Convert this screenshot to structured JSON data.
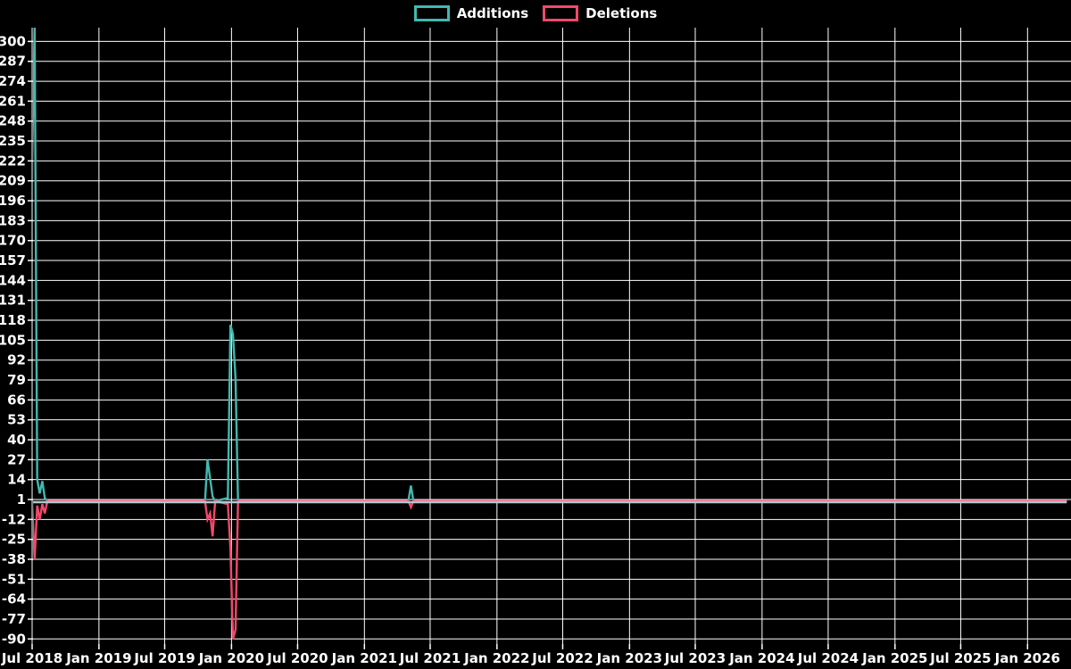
{
  "legend": {
    "additions_label": "Additions",
    "deletions_label": "Deletions"
  },
  "colors": {
    "background": "#000000",
    "grid": "#ffffff",
    "text": "#ffffff",
    "additions": "#42b8b0",
    "deletions": "#f1496b",
    "zero_baseline": "#b0c8d2"
  },
  "chart_data": {
    "type": "line",
    "title": "",
    "legend": [
      "Additions",
      "Deletions"
    ],
    "legend_position": "top-center",
    "grid": true,
    "background": "black",
    "x_ticks": [
      "Jul 2018",
      "Jan 2019",
      "Jul 2019",
      "Jan 2020",
      "Jul 2020",
      "Jan 2021",
      "Jul 2021",
      "Jan 2022",
      "Jul 2022",
      "Jan 2023",
      "Jul 2023",
      "Jan 2024",
      "Jul 2024",
      "Jan 2025",
      "Jul 2025",
      "Jan 2026"
    ],
    "y_ticks": [
      300,
      287,
      274,
      261,
      248,
      235,
      222,
      209,
      196,
      183,
      170,
      157,
      144,
      131,
      118,
      105,
      92,
      79,
      66,
      53,
      40,
      27,
      14,
      1,
      -12,
      -25,
      -38,
      -51,
      -64,
      -77,
      -90
    ],
    "ylim": [
      -93,
      308
    ],
    "xlim": [
      "2018-06-26",
      "2026-04-19"
    ],
    "note_top_clip": "first Additions spike exceeds 300 and is clipped at plot top",
    "series": [
      {
        "name": "Additions",
        "color": "#42b8b0"
      },
      {
        "name": "Deletions",
        "color": "#f1496b"
      }
    ],
    "points": [
      {
        "date": "2018-06-26",
        "additions": 0,
        "deletions": 0
      },
      {
        "date": "2018-07-01",
        "additions": 222,
        "deletions": -2
      },
      {
        "date": "2018-07-08",
        "additions": 310,
        "deletions": -38
      },
      {
        "date": "2018-07-15",
        "additions": 14,
        "deletions": -3
      },
      {
        "date": "2018-07-22",
        "additions": 5,
        "deletions": -12
      },
      {
        "date": "2018-07-29",
        "additions": 13,
        "deletions": -2
      },
      {
        "date": "2018-08-05",
        "additions": 2,
        "deletions": -8
      },
      {
        "date": "2018-08-12",
        "additions": 0,
        "deletions": 0
      },
      {
        "date": "2019-10-20",
        "additions": 0,
        "deletions": 0
      },
      {
        "date": "2019-10-27",
        "additions": 27,
        "deletions": -12
      },
      {
        "date": "2019-11-03",
        "additions": 15,
        "deletions": -8
      },
      {
        "date": "2019-11-10",
        "additions": 3,
        "deletions": -23
      },
      {
        "date": "2019-11-17",
        "additions": 0,
        "deletions": 0
      },
      {
        "date": "2019-12-22",
        "additions": 2,
        "deletions": -2
      },
      {
        "date": "2019-12-29",
        "additions": 115,
        "deletions": -31
      },
      {
        "date": "2020-01-05",
        "additions": 109,
        "deletions": -90
      },
      {
        "date": "2020-01-12",
        "additions": 80,
        "deletions": -84
      },
      {
        "date": "2020-01-19",
        "additions": 0,
        "deletions": 0
      },
      {
        "date": "2021-05-02",
        "additions": 0,
        "deletions": 0
      },
      {
        "date": "2021-05-09",
        "additions": 10,
        "deletions": -4
      },
      {
        "date": "2021-05-16",
        "additions": 0,
        "deletions": 0
      },
      {
        "date": "2026-04-19",
        "additions": 0,
        "deletions": 0
      }
    ]
  }
}
